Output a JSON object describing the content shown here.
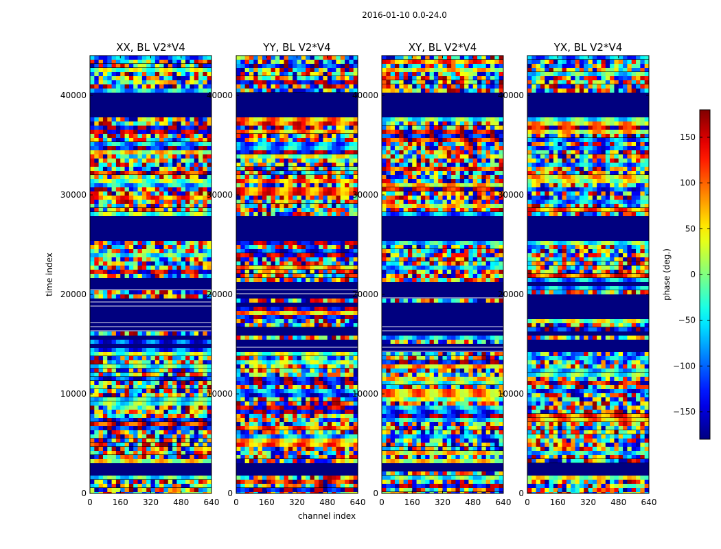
{
  "chart_data": {
    "type": "heatmap",
    "suptitle": "2016-01-10 0.0-24.0",
    "xlabel": "channel index",
    "ylabel": "time index",
    "xlim": [
      0,
      640
    ],
    "ylim": [
      0,
      44000
    ],
    "xticks": [
      0,
      160,
      320,
      480,
      640
    ],
    "yticks": [
      0,
      10000,
      20000,
      30000,
      40000
    ],
    "panels": [
      {
        "title": "XX, BL V2*V4",
        "seed": 11
      },
      {
        "title": "YY, BL V2*V4",
        "seed": 23
      },
      {
        "title": "XY, BL V2*V4",
        "seed": 37
      },
      {
        "title": "YX, BL V2*V4",
        "seed": 53
      }
    ],
    "flagged_time_ranges": [
      [
        2300,
        2400
      ],
      [
        25700,
        27000
      ],
      [
        38100,
        39600
      ]
    ],
    "colorbar": {
      "label": "phase (deg.)",
      "range": [
        -180,
        180
      ],
      "ticks": [
        150,
        100,
        50,
        0,
        -50,
        -100,
        -150
      ],
      "tick_labels": [
        "150",
        "100",
        "50",
        "0",
        "−50",
        "−100",
        "−150"
      ],
      "colormap": "jet"
    }
  }
}
